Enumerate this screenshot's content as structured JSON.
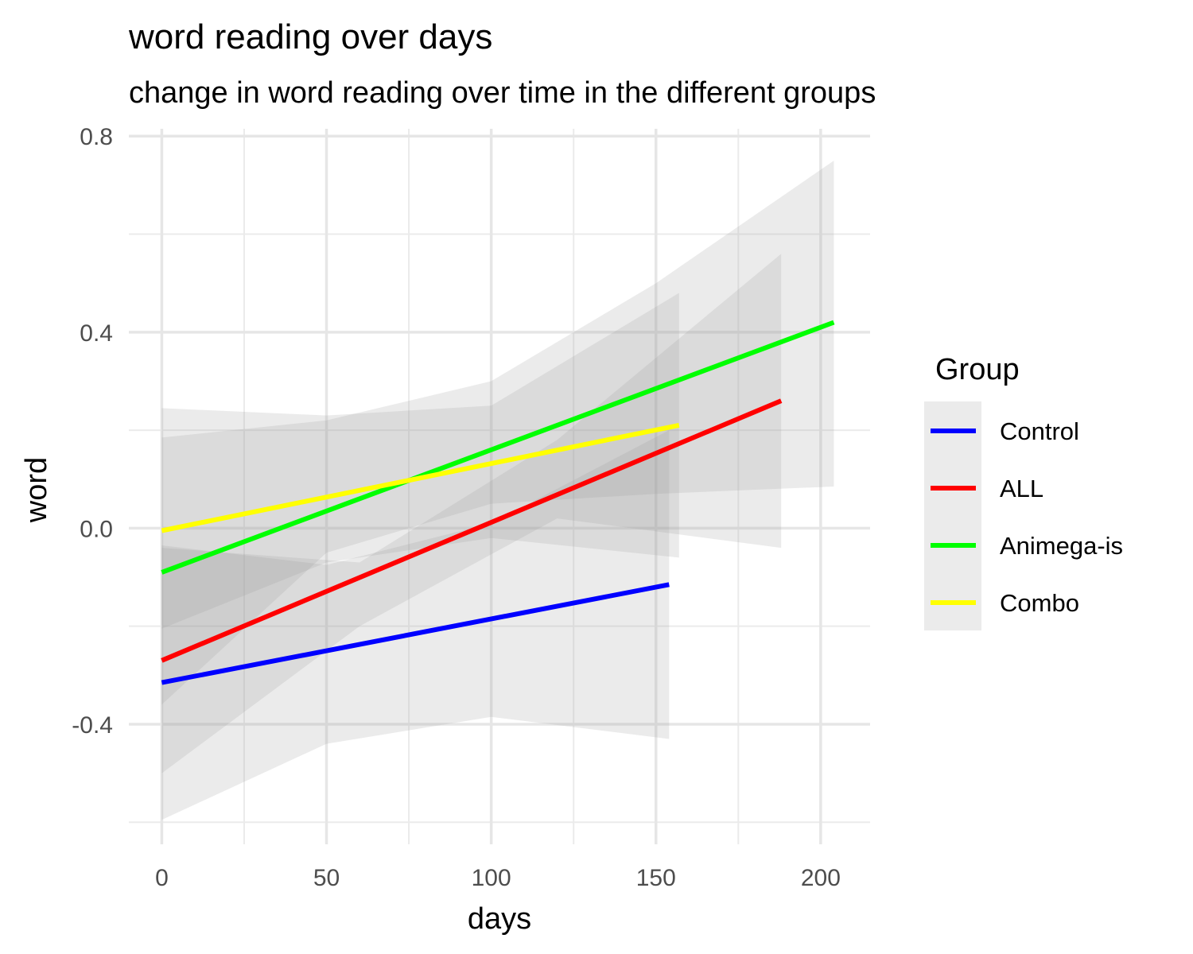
{
  "chart_data": {
    "type": "line",
    "title": "word reading over days",
    "subtitle": "change in word reading over time in the different groups",
    "xlabel": "days",
    "ylabel": "word",
    "xlim": [
      -10,
      215
    ],
    "ylim": [
      -0.645,
      0.815
    ],
    "x_ticks": [
      0,
      50,
      100,
      150,
      200
    ],
    "x_tick_labels": [
      "0",
      "50",
      "100",
      "150",
      "200"
    ],
    "x_minor": [
      25,
      75,
      125,
      175
    ],
    "y_ticks": [
      -0.4,
      0.0,
      0.4,
      0.8
    ],
    "y_tick_labels": [
      "-0.4",
      "0.0",
      "0.4",
      "0.8"
    ],
    "y_minor": [
      -0.6,
      -0.2,
      0.2,
      0.6
    ],
    "grid": true,
    "legend": {
      "title": "Group",
      "placement": "right"
    },
    "series": [
      {
        "name": "Control",
        "color": "#0000FF",
        "x": [
          0,
          154
        ],
        "y": [
          -0.315,
          -0.115
        ],
        "band": {
          "x": [
            0,
            50,
            100,
            154
          ],
          "lower": [
            -0.595,
            -0.44,
            -0.385,
            -0.43
          ],
          "upper": [
            -0.035,
            -0.075,
            0.01,
            0.2
          ]
        }
      },
      {
        "name": "ALL",
        "color": "#FF0000",
        "x": [
          0,
          188
        ],
        "y": [
          -0.27,
          0.26
        ],
        "band": {
          "x": [
            0,
            60,
            120,
            188
          ],
          "lower": [
            -0.5,
            -0.2,
            0.02,
            -0.04
          ],
          "upper": [
            -0.04,
            -0.07,
            0.18,
            0.56
          ]
        }
      },
      {
        "name": "Animega-is",
        "color": "#00FF00",
        "x": [
          0,
          204
        ],
        "y": [
          -0.09,
          0.42
        ],
        "band": {
          "x": [
            0,
            50,
            100,
            150,
            204
          ],
          "lower": [
            -0.36,
            -0.05,
            0.05,
            0.07,
            0.085
          ],
          "upper": [
            0.185,
            0.22,
            0.3,
            0.5,
            0.75
          ]
        }
      },
      {
        "name": "Combo",
        "color": "#FFFF00",
        "x": [
          0,
          157
        ],
        "y": [
          -0.005,
          0.21
        ],
        "band": {
          "x": [
            0,
            50,
            100,
            157
          ],
          "lower": [
            -0.205,
            -0.07,
            -0.02,
            -0.06
          ],
          "upper": [
            0.245,
            0.23,
            0.25,
            0.48
          ]
        }
      }
    ]
  }
}
